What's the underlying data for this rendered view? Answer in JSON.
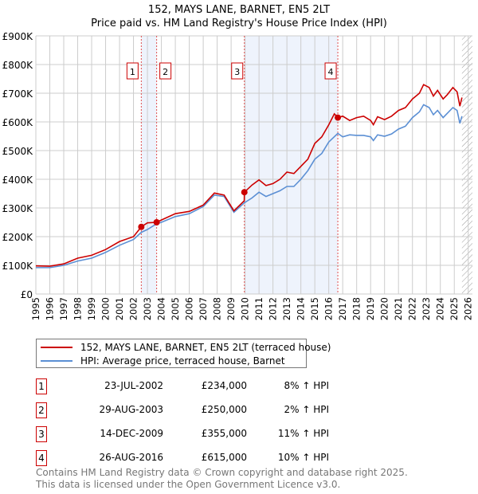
{
  "chart_data": {
    "type": "line",
    "title": "152, MAYS LANE, BARNET, EN5 2LT",
    "subtitle": "Price paid vs. HM Land Registry's House Price Index (HPI)",
    "xlim": [
      1995,
      2026.3
    ],
    "ylim": [
      0,
      900000
    ],
    "yticks": [
      {
        "v": 0,
        "label": "£0"
      },
      {
        "v": 100000,
        "label": "£100K"
      },
      {
        "v": 200000,
        "label": "£200K"
      },
      {
        "v": 300000,
        "label": "£300K"
      },
      {
        "v": 400000,
        "label": "£400K"
      },
      {
        "v": 500000,
        "label": "£500K"
      },
      {
        "v": 600000,
        "label": "£600K"
      },
      {
        "v": 700000,
        "label": "£700K"
      },
      {
        "v": 800000,
        "label": "£800K"
      },
      {
        "v": 900000,
        "label": "£900K"
      }
    ],
    "xticks": [
      "1995",
      "1996",
      "1997",
      "1998",
      "1999",
      "2000",
      "2001",
      "2002",
      "2003",
      "2004",
      "2005",
      "2006",
      "2007",
      "2008",
      "2009",
      "2010",
      "2011",
      "2012",
      "2013",
      "2014",
      "2015",
      "2016",
      "2017",
      "2018",
      "2019",
      "2020",
      "2021",
      "2022",
      "2023",
      "2024",
      "2025",
      "2026"
    ],
    "grid": true,
    "shaded_ranges": [
      [
        2002.56,
        2003.66
      ],
      [
        2009.95,
        2016.65
      ]
    ],
    "forecast_hatch_from": 2025.55,
    "series": [
      {
        "name": "152, MAYS LANE, BARNET, EN5 2LT (terraced house)",
        "color": "#cc0000",
        "x": [
          1995,
          1996,
          1997,
          1998,
          1999,
          2000,
          2001,
          2002,
          2002.56,
          2003,
          2003.66,
          2004,
          2005,
          2006,
          2007,
          2007.8,
          2008.5,
          2009.2,
          2009.94,
          2009.95,
          2010.5,
          2011,
          2011.5,
          2012,
          2012.5,
          2013,
          2013.5,
          2014,
          2014.5,
          2015,
          2015.5,
          2016,
          2016.4,
          2016.65,
          2017,
          2017.5,
          2018,
          2018.5,
          2019,
          2019.2,
          2019.5,
          2020,
          2020.5,
          2021,
          2021.5,
          2022,
          2022.5,
          2022.8,
          2023.2,
          2023.5,
          2023.8,
          2024.2,
          2024.5,
          2024.9,
          2025.2,
          2025.4,
          2025.55
        ],
        "y": [
          98000,
          97000,
          105000,
          125000,
          135000,
          155000,
          183000,
          200000,
          234000,
          248000,
          250000,
          258000,
          280000,
          288000,
          310000,
          352000,
          345000,
          290000,
          325000,
          355000,
          380000,
          398000,
          378000,
          385000,
          400000,
          425000,
          420000,
          445000,
          470000,
          525000,
          548000,
          590000,
          628000,
          615000,
          620000,
          605000,
          615000,
          620000,
          605000,
          590000,
          618000,
          608000,
          620000,
          640000,
          650000,
          680000,
          700000,
          730000,
          720000,
          690000,
          710000,
          680000,
          695000,
          720000,
          705000,
          655000,
          685000
        ]
      },
      {
        "name": "HPI: Average price, terraced house, Barnet",
        "color": "#5b8fd4",
        "x": [
          1995,
          1996,
          1997,
          1998,
          1999,
          2000,
          2001,
          2002,
          2002.56,
          2003,
          2003.66,
          2004,
          2005,
          2006,
          2007,
          2007.8,
          2008.5,
          2009.2,
          2009.95,
          2010.5,
          2011,
          2011.5,
          2012,
          2012.5,
          2013,
          2013.5,
          2014,
          2014.5,
          2015,
          2015.5,
          2016,
          2016.65,
          2017,
          2017.5,
          2018,
          2018.5,
          2019,
          2019.2,
          2019.5,
          2020,
          2020.5,
          2021,
          2021.5,
          2022,
          2022.5,
          2022.8,
          2023.2,
          2023.5,
          2023.8,
          2024.2,
          2024.5,
          2024.9,
          2025.2,
          2025.4,
          2025.55
        ],
        "y": [
          92000,
          92000,
          100000,
          115000,
          125000,
          145000,
          170000,
          190000,
          215000,
          225000,
          245000,
          250000,
          270000,
          280000,
          305000,
          345000,
          340000,
          285000,
          318000,
          335000,
          355000,
          340000,
          350000,
          360000,
          375000,
          375000,
          400000,
          430000,
          470000,
          490000,
          530000,
          560000,
          548000,
          555000,
          553000,
          553000,
          548000,
          535000,
          555000,
          550000,
          558000,
          575000,
          585000,
          615000,
          635000,
          660000,
          650000,
          625000,
          640000,
          615000,
          630000,
          650000,
          640000,
          595000,
          620000
        ]
      }
    ],
    "sales": [
      {
        "n": "1",
        "x": 2002.56,
        "y": 234000
      },
      {
        "n": "2",
        "x": 2003.66,
        "y": 250000
      },
      {
        "n": "3",
        "x": 2009.95,
        "y": 355000
      },
      {
        "n": "4",
        "x": 2016.65,
        "y": 615000
      }
    ]
  },
  "legend": {
    "property": "152, MAYS LANE, BARNET, EN5 2LT (terraced house)",
    "hpi": "HPI: Average price, terraced house, Barnet"
  },
  "table": [
    {
      "n": "1",
      "date": "23-JUL-2002",
      "price": "£234,000",
      "hpi": "8% ↑ HPI"
    },
    {
      "n": "2",
      "date": "29-AUG-2003",
      "price": "£250,000",
      "hpi": "2% ↑ HPI"
    },
    {
      "n": "3",
      "date": "14-DEC-2009",
      "price": "£355,000",
      "hpi": "11% ↑ HPI"
    },
    {
      "n": "4",
      "date": "26-AUG-2016",
      "price": "£615,000",
      "hpi": "10% ↑ HPI"
    }
  ],
  "footer": {
    "line1": "Contains HM Land Registry data © Crown copyright and database right 2025.",
    "line2": "This data is licensed under the Open Government Licence v3.0."
  }
}
